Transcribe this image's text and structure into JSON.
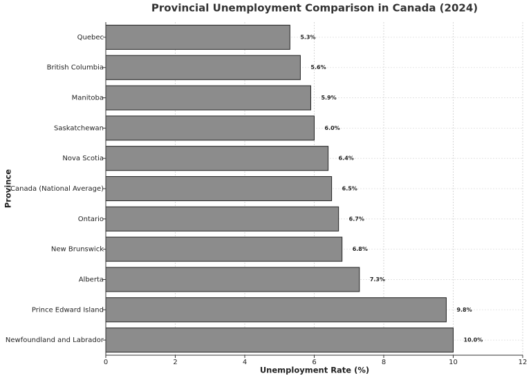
{
  "chart_data": {
    "type": "bar",
    "orientation": "horizontal",
    "title": "Provincial Unemployment Comparison in Canada (2024)",
    "x_label": "Unemployment Rate (%)",
    "y_label": "Province",
    "categories": [
      "Quebec",
      "British Columbia",
      "Manitoba",
      "Saskatchewan",
      "Nova Scotia",
      "Canada (National Average)",
      "Ontario",
      "New Brunswick",
      "Alberta",
      "Prince Edward Island",
      "Newfoundland and Labrador"
    ],
    "values": [
      5.3,
      5.6,
      5.9,
      6.0,
      6.4,
      6.5,
      6.7,
      6.8,
      7.3,
      9.8,
      10.0
    ],
    "value_labels": [
      "5.3%",
      "5.6%",
      "5.9%",
      "6.0%",
      "6.4%",
      "6.5%",
      "6.7%",
      "6.8%",
      "7.3%",
      "9.8%",
      "10.0%"
    ],
    "color": "#8c8c8c",
    "xlim": [
      0,
      12
    ],
    "xticks": [
      0,
      2,
      4,
      6,
      8,
      10,
      12
    ],
    "grid": true
  }
}
